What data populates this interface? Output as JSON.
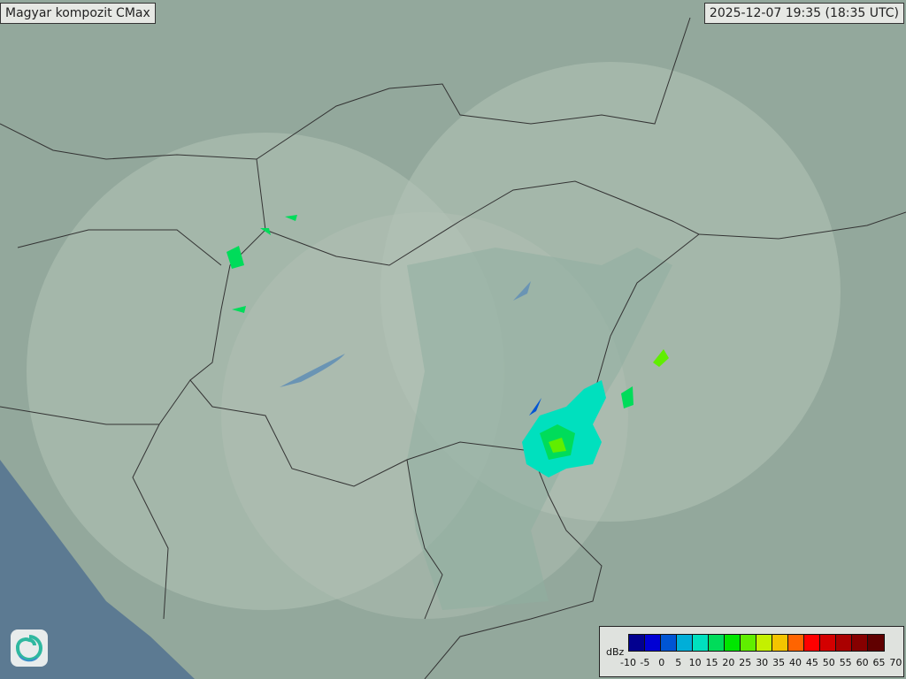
{
  "header": {
    "title": "Magyar kompozit  CMax",
    "timestamp": "2025-12-07 19:35 (18:35 UTC)"
  },
  "legend": {
    "unit": "dBz",
    "ticks": [
      "-10",
      "-5",
      "0",
      "5",
      "10",
      "15",
      "20",
      "25",
      "30",
      "35",
      "40",
      "45",
      "50",
      "55",
      "60",
      "65",
      "70"
    ],
    "colors": [
      "#02008f",
      "#0000d4",
      "#0055d4",
      "#00aed8",
      "#00e0be",
      "#00dc5a",
      "#00e600",
      "#60ee00",
      "#c4f000",
      "#f4c400",
      "#ff6400",
      "#ff0000",
      "#d40000",
      "#aa0000",
      "#860000",
      "#600000"
    ]
  },
  "logo": {
    "icon": "swirl-logo-icon"
  }
}
